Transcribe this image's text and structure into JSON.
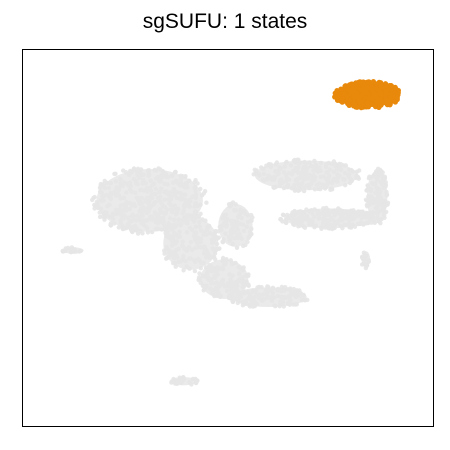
{
  "chart_data": {
    "type": "scatter",
    "title": "sgSUFU: 1 states",
    "xlabel": "",
    "ylabel": "",
    "grid": false,
    "legend": "none",
    "axes_ticks": false,
    "series": [
      {
        "name": "background cells",
        "color": "#e6e6e6",
        "regions": [
          {
            "name": "left-cluster",
            "cx": -5.2,
            "cy": 1.6,
            "rx": 3.1,
            "ry": 1.9,
            "density": 420
          },
          {
            "name": "left-tail",
            "cx": -3.0,
            "cy": -0.8,
            "rx": 1.6,
            "ry": 1.6,
            "density": 160
          },
          {
            "name": "center-bridge",
            "cx": -0.6,
            "cy": 0.2,
            "rx": 1.0,
            "ry": 1.3,
            "density": 90
          },
          {
            "name": "right-arc-top",
            "cx": 3.2,
            "cy": 3.0,
            "rx": 3.0,
            "ry": 0.9,
            "density": 220
          },
          {
            "name": "right-arc-band",
            "cx": 4.4,
            "cy": 0.6,
            "rx": 2.6,
            "ry": 0.6,
            "density": 200
          },
          {
            "name": "right-arc-side",
            "cx": 7.0,
            "cy": 1.8,
            "rx": 0.6,
            "ry": 1.6,
            "density": 110
          },
          {
            "name": "lower-curve",
            "cx": -1.2,
            "cy": -2.8,
            "rx": 1.4,
            "ry": 1.2,
            "density": 140
          },
          {
            "name": "lower-arm",
            "cx": 1.2,
            "cy": -3.8,
            "rx": 2.2,
            "ry": 0.6,
            "density": 130
          },
          {
            "name": "small-left-blob",
            "cx": -9.3,
            "cy": -1.2,
            "rx": 0.6,
            "ry": 0.2,
            "density": 14
          },
          {
            "name": "small-right-blob",
            "cx": 6.4,
            "cy": -1.7,
            "rx": 0.25,
            "ry": 0.5,
            "density": 16
          },
          {
            "name": "small-bottom-blob",
            "cx": -3.4,
            "cy": -8.5,
            "rx": 0.8,
            "ry": 0.25,
            "density": 20
          }
        ]
      },
      {
        "name": "sgSUFU state",
        "color": "#e8890c",
        "regions": [
          {
            "name": "highlighted-cluster",
            "cx": 6.5,
            "cy": 7.5,
            "rx": 1.8,
            "ry": 0.75,
            "density": 260
          }
        ]
      }
    ],
    "xlim": [
      -12,
      10
    ],
    "ylim": [
      -11,
      10
    ]
  }
}
